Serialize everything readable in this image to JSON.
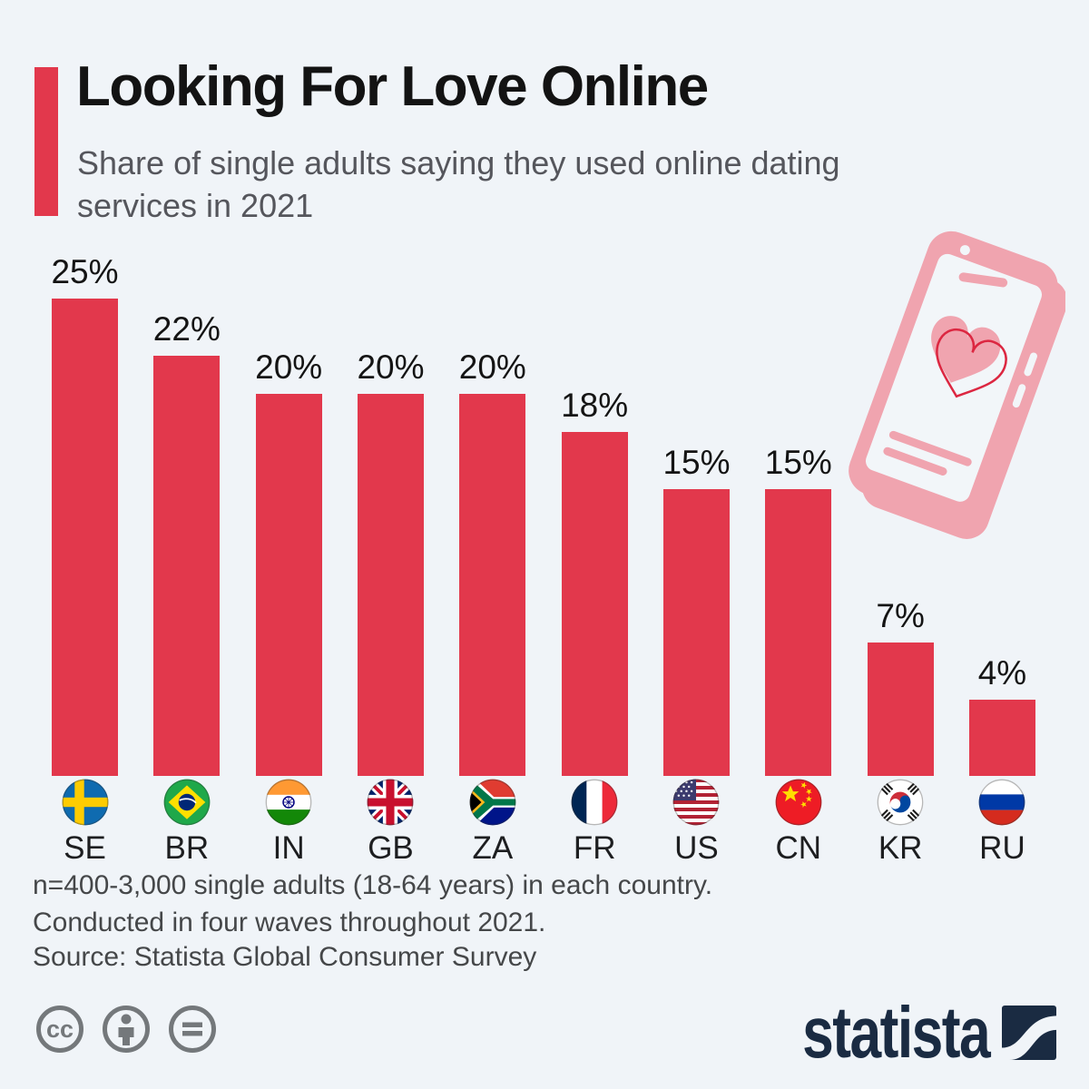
{
  "header": {
    "title": "Looking For Love Online",
    "subtitle_line1": "Share of single adults saying they used online dating",
    "subtitle_line2": "services in 2021"
  },
  "chart_data": {
    "type": "bar",
    "title": "Looking For Love Online",
    "subtitle": "Share of single adults saying they used online dating services in 2021",
    "categories": [
      "SE",
      "BR",
      "IN",
      "GB",
      "ZA",
      "FR",
      "US",
      "CN",
      "KR",
      "RU"
    ],
    "values": [
      25,
      22,
      20,
      20,
      20,
      18,
      15,
      15,
      7,
      4
    ],
    "value_labels": [
      "25%",
      "22%",
      "20%",
      "20%",
      "20%",
      "18%",
      "15%",
      "15%",
      "7%",
      "4%"
    ],
    "unit": "%",
    "ylim": [
      0,
      25
    ],
    "grid": false,
    "legend": "none",
    "bar_color": "#e2384c",
    "flag_icons": [
      "se-flag-icon",
      "br-flag-icon",
      "in-flag-icon",
      "gb-flag-icon",
      "za-flag-icon",
      "fr-flag-icon",
      "us-flag-icon",
      "cn-flag-icon",
      "kr-flag-icon",
      "ru-flag-icon"
    ]
  },
  "notes": {
    "line1": "n=400-3,000 single adults (18-64 years) in each country.",
    "line2": "Conducted in four waves throughout 2021.",
    "source": "Source: Statista Global Consumer Survey"
  },
  "footer": {
    "brand": "statista",
    "license_icons": [
      "cc-icon",
      "attribution-person-icon",
      "no-derivatives-icon"
    ]
  },
  "illustration": {
    "name": "smartphone-with-heart",
    "phone_color": "#f0a4af",
    "heart_outline_color": "#dc2741"
  },
  "colors": {
    "background": "#f0f4f8",
    "accent_red": "#e2384c",
    "title_text": "#131313",
    "subtitle_text": "#55565c",
    "note_text": "#454749",
    "license_gray": "#74787b",
    "brand_navy": "#1a2b42"
  }
}
